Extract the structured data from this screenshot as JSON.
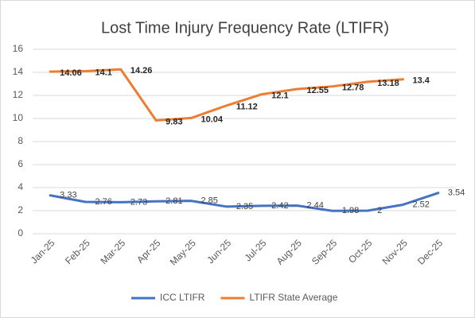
{
  "chart_data": {
    "type": "line",
    "title": "Lost Time Injury Frequency Rate (LTIFR)",
    "categories": [
      "Jan-25",
      "Feb-25",
      "Mar-25",
      "Apr-25",
      "May-25",
      "Jun-25",
      "Jul-25",
      "Aug-25",
      "Sep-25",
      "Oct-25",
      "Nov-25",
      "Dec-25"
    ],
    "series": [
      {
        "name": "ICC LTIFR",
        "color": "#4472c4",
        "values": [
          3.33,
          2.76,
          2.73,
          2.81,
          2.85,
          2.35,
          2.42,
          2.44,
          1.98,
          2,
          2.52,
          3.54
        ]
      },
      {
        "name": "LTIFR State Average",
        "color": "#ed7d31",
        "values": [
          14.06,
          14.1,
          14.26,
          9.83,
          10.04,
          11.12,
          12.1,
          12.55,
          12.78,
          13.18,
          13.4,
          null
        ]
      }
    ],
    "ylim": [
      0,
      16
    ],
    "yticks": [
      0,
      2,
      4,
      6,
      8,
      10,
      12,
      14,
      16
    ],
    "grid": true,
    "legend": "bottom"
  }
}
